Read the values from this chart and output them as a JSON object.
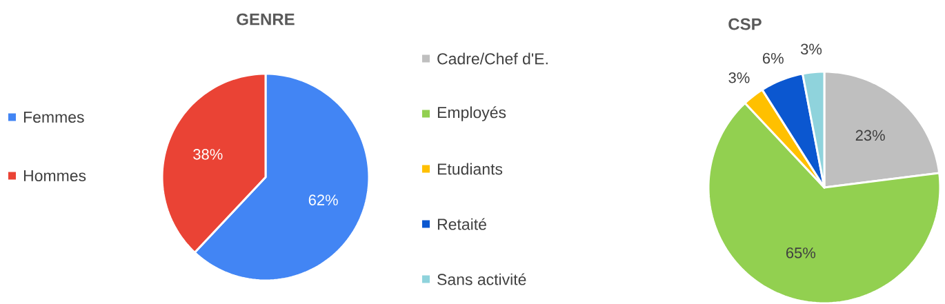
{
  "chart_data": [
    {
      "type": "pie",
      "title": "GENRE",
      "categories": [
        "Femmes",
        "Hommes"
      ],
      "values": [
        62,
        38
      ],
      "colors": [
        "#4285f4",
        "#ea4335"
      ],
      "value_labels": [
        "62%",
        "38%"
      ],
      "legend": "left"
    },
    {
      "type": "pie",
      "title": "CSP",
      "categories": [
        "Cadre/Chef d'E.",
        "Employés",
        "Etudiants",
        "Retaité",
        "Sans activité"
      ],
      "values": [
        23,
        65,
        3,
        6,
        3
      ],
      "colors": [
        "#bfbfbf",
        "#92d050",
        "#ffc000",
        "#0b57d0",
        "#8fd3dc"
      ],
      "value_labels": [
        "23%",
        "65%",
        "3%",
        "6%",
        "3%"
      ],
      "legend": "left"
    }
  ]
}
